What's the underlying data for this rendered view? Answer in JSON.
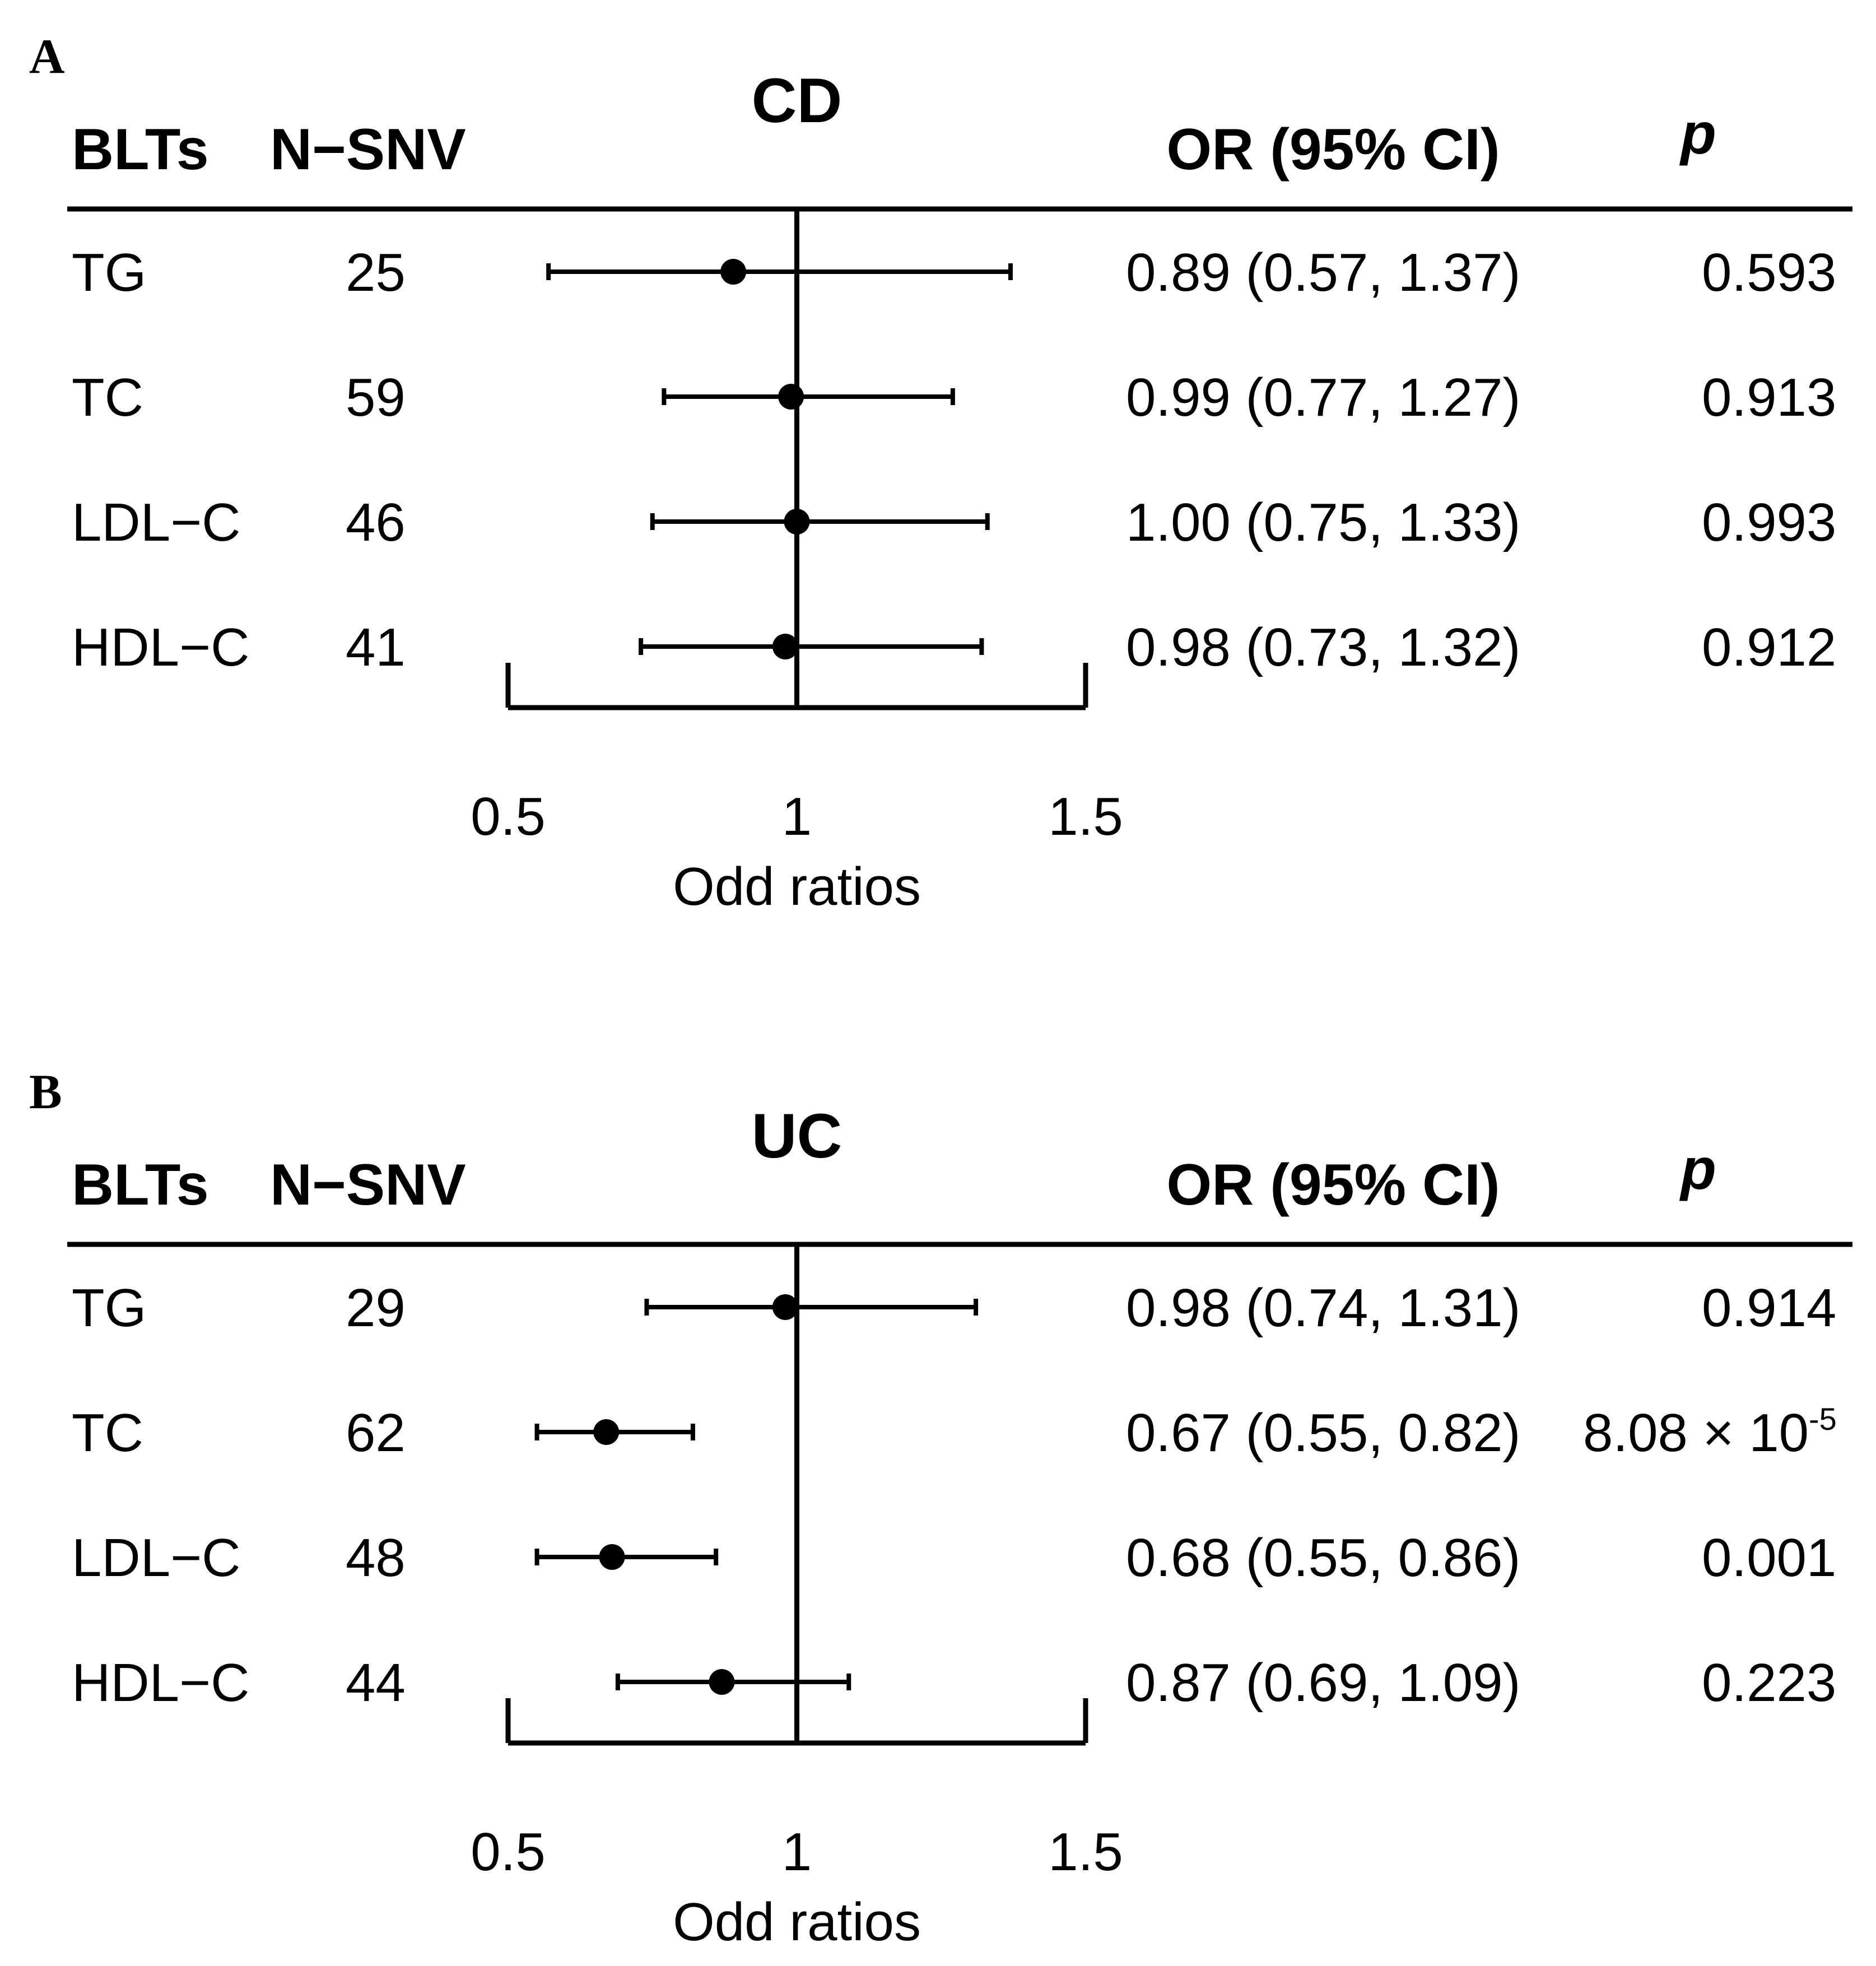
{
  "chart_data": [
    {
      "type": "forest",
      "panel_label": "A",
      "title": "CD",
      "columns": {
        "trait": "BLTs",
        "n": "N−SNV",
        "or": "OR (95% CI)",
        "p": "p"
      },
      "rows": [
        {
          "trait": "TG",
          "n": "25",
          "or": 0.89,
          "lo": 0.57,
          "hi": 1.37,
          "or_text": "0.89 (0.57, 1.37)",
          "p_text": "0.593"
        },
        {
          "trait": "TC",
          "n": "59",
          "or": 0.99,
          "lo": 0.77,
          "hi": 1.27,
          "or_text": "0.99 (0.77, 1.27)",
          "p_text": "0.913"
        },
        {
          "trait": "LDL−C",
          "n": "46",
          "or": 1.0,
          "lo": 0.75,
          "hi": 1.33,
          "or_text": "1.00 (0.75, 1.33)",
          "p_text": "0.993"
        },
        {
          "trait": "HDL−C",
          "n": "41",
          "or": 0.98,
          "lo": 0.73,
          "hi": 1.32,
          "or_text": "0.98 (0.73, 1.32)",
          "p_text": "0.912"
        }
      ],
      "xlim": [
        0.5,
        1.5
      ],
      "xticks": [
        0.5,
        1,
        1.5
      ],
      "xtick_labels": [
        "0.5",
        "1",
        "1.5"
      ],
      "reference_line": 1,
      "xlabel": "Odd ratios"
    },
    {
      "type": "forest",
      "panel_label": "B",
      "title": "UC",
      "columns": {
        "trait": "BLTs",
        "n": "N−SNV",
        "or": "OR (95% CI)",
        "p": "p"
      },
      "rows": [
        {
          "trait": "TG",
          "n": "29",
          "or": 0.98,
          "lo": 0.74,
          "hi": 1.31,
          "or_text": "0.98 (0.74, 1.31)",
          "p_text": "0.914"
        },
        {
          "trait": "TC",
          "n": "62",
          "or": 0.67,
          "lo": 0.55,
          "hi": 0.82,
          "or_text": "0.67 (0.55, 0.82)",
          "p_text": "8.08 × 10",
          "p_exp": "-5"
        },
        {
          "trait": "LDL−C",
          "n": "48",
          "or": 0.68,
          "lo": 0.55,
          "hi": 0.86,
          "or_text": "0.68 (0.55, 0.86)",
          "p_text": "0.001"
        },
        {
          "trait": "HDL−C",
          "n": "44",
          "or": 0.87,
          "lo": 0.69,
          "hi": 1.09,
          "or_text": "0.87 (0.69, 1.09)",
          "p_text": "0.223"
        }
      ],
      "xlim": [
        0.5,
        1.5
      ],
      "xticks": [
        0.5,
        1,
        1.5
      ],
      "xtick_labels": [
        "0.5",
        "1",
        "1.5"
      ],
      "reference_line": 1,
      "xlabel": "Odd ratios"
    }
  ]
}
